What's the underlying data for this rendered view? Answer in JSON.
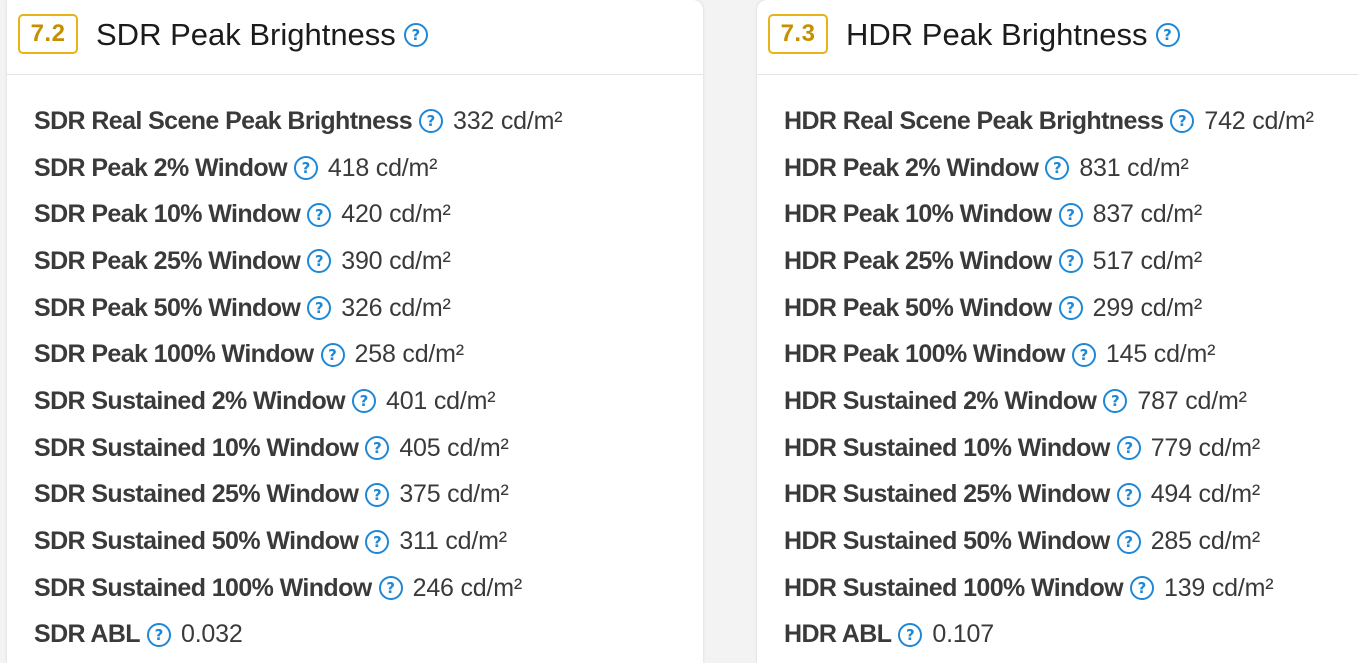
{
  "panels": [
    {
      "score": "7.2",
      "title": "SDR Peak Brightness",
      "rows": [
        {
          "label": "SDR Real Scene Peak Brightness",
          "value": "332 cd/m²"
        },
        {
          "label": "SDR Peak 2% Window",
          "value": "418 cd/m²"
        },
        {
          "label": "SDR Peak 10% Window",
          "value": "420 cd/m²"
        },
        {
          "label": "SDR Peak 25% Window",
          "value": "390 cd/m²"
        },
        {
          "label": "SDR Peak 50% Window",
          "value": "326 cd/m²"
        },
        {
          "label": "SDR Peak 100% Window",
          "value": "258 cd/m²"
        },
        {
          "label": "SDR Sustained 2% Window",
          "value": "401 cd/m²"
        },
        {
          "label": "SDR Sustained 10% Window",
          "value": "405 cd/m²"
        },
        {
          "label": "SDR Sustained 25% Window",
          "value": "375 cd/m²"
        },
        {
          "label": "SDR Sustained 50% Window",
          "value": "311 cd/m²"
        },
        {
          "label": "SDR Sustained 100% Window",
          "value": "246 cd/m²"
        },
        {
          "label": "SDR ABL",
          "value": "0.032"
        }
      ]
    },
    {
      "score": "7.3",
      "title": "HDR Peak Brightness",
      "rows": [
        {
          "label": "HDR Real Scene Peak Brightness",
          "value": "742 cd/m²"
        },
        {
          "label": "HDR Peak 2% Window",
          "value": "831 cd/m²"
        },
        {
          "label": "HDR Peak 10% Window",
          "value": "837 cd/m²"
        },
        {
          "label": "HDR Peak 25% Window",
          "value": "517 cd/m²"
        },
        {
          "label": "HDR Peak 50% Window",
          "value": "299 cd/m²"
        },
        {
          "label": "HDR Peak 100% Window",
          "value": "145 cd/m²"
        },
        {
          "label": "HDR Sustained 2% Window",
          "value": "787 cd/m²"
        },
        {
          "label": "HDR Sustained 10% Window",
          "value": "779 cd/m²"
        },
        {
          "label": "HDR Sustained 25% Window",
          "value": "494 cd/m²"
        },
        {
          "label": "HDR Sustained 50% Window",
          "value": "285 cd/m²"
        },
        {
          "label": "HDR Sustained 100% Window",
          "value": "139 cd/m²"
        },
        {
          "label": "HDR ABL",
          "value": "0.107"
        }
      ]
    }
  ],
  "icons": {
    "help": "question-mark-circle-icon",
    "help_glyph": "?"
  },
  "colors": {
    "badge_border": "#e6b319",
    "badge_text": "#c58f00",
    "help_icon": "#1e88d6",
    "label_text": "#3a3a3a"
  }
}
